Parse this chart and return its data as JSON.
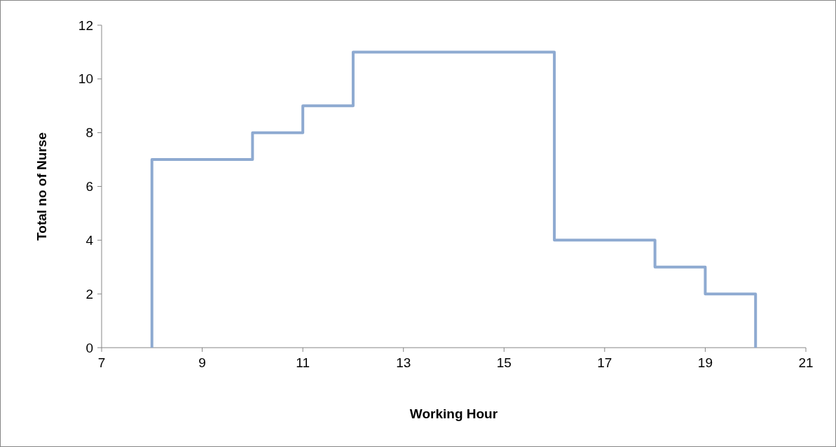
{
  "chart_data": {
    "type": "step",
    "xlabel": "Working Hour",
    "ylabel": "Total no of Nurse",
    "x": [
      8,
      8,
      10,
      11,
      12,
      16,
      18,
      19,
      20
    ],
    "values": [
      0,
      7,
      8,
      9,
      11,
      4,
      3,
      2,
      0
    ],
    "color": "#8eaad1",
    "xlim": [
      7,
      21
    ],
    "xticks": [
      7,
      9,
      11,
      13,
      15,
      17,
      19,
      21
    ],
    "ylim": [
      0,
      12
    ],
    "yticks": [
      0,
      2,
      4,
      6,
      8,
      10,
      12
    ],
    "grid": false,
    "marker": "none",
    "line_style": "solid"
  }
}
